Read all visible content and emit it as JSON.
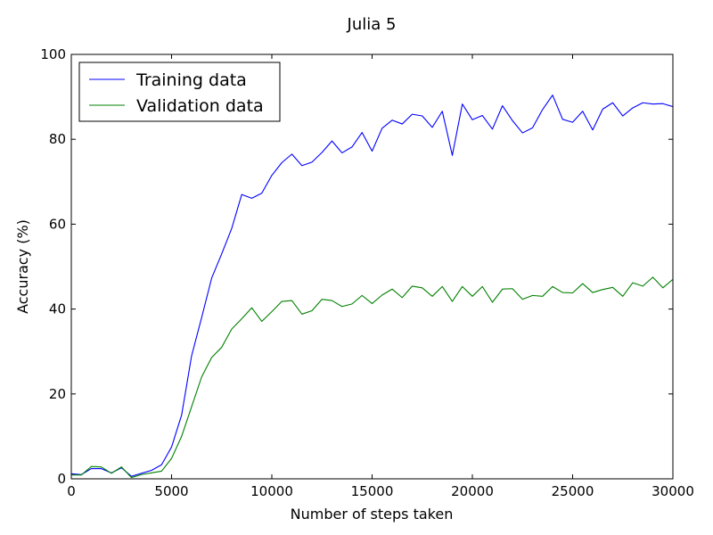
{
  "chart_data": {
    "type": "line",
    "title": "Julia 5",
    "xlabel": "Number of steps taken",
    "ylabel": "Accuracy (%)",
    "xlim": [
      0,
      30000
    ],
    "ylim": [
      0,
      100
    ],
    "xticks": [
      0,
      5000,
      10000,
      15000,
      20000,
      25000,
      30000
    ],
    "yticks": [
      0,
      20,
      40,
      60,
      80,
      100
    ],
    "grid": false,
    "legend_position": "top-left",
    "x": [
      0,
      500,
      1000,
      1500,
      2000,
      2500,
      3000,
      3500,
      4000,
      4500,
      5000,
      5500,
      6000,
      6500,
      7000,
      7500,
      8000,
      8500,
      9000,
      9500,
      10000,
      10500,
      11000,
      11500,
      12000,
      12500,
      13000,
      13500,
      14000,
      14500,
      15000,
      15500,
      16000,
      16500,
      17000,
      17500,
      18000,
      18500,
      19000,
      19500,
      20000,
      20500,
      21000,
      21500,
      22000,
      22500,
      23000,
      23500,
      24000,
      24500,
      25000,
      25500,
      26000,
      26500,
      27000,
      27500,
      28000,
      28500,
      29000,
      29500,
      30000
    ],
    "series": [
      {
        "name": "Training data",
        "color": "#0000ff",
        "values": [
          1.2,
          1.0,
          2.4,
          2.4,
          1.4,
          2.6,
          0.6,
          1.3,
          2.0,
          3.3,
          7.5,
          15,
          29,
          38,
          47.3,
          53,
          59,
          67,
          66.1,
          67.3,
          71.5,
          74.5,
          76.5,
          73.8,
          74.6,
          76.9,
          79.6,
          76.8,
          78.2,
          81.6,
          77.2,
          82.6,
          84.5,
          83.6,
          85.9,
          85.5,
          82.8,
          86.6,
          76.2,
          88.3,
          84.6,
          85.6,
          82.4,
          87.9,
          84.4,
          81.5,
          82.7,
          87.0,
          90.4,
          84.7,
          84.0,
          86.6,
          82.2,
          87.1,
          88.6,
          85.5,
          87.4,
          88.6,
          88.3,
          88.4,
          87.7
        ]
      },
      {
        "name": "Validation data",
        "color": "#008000",
        "values": [
          0.9,
          0.9,
          2.9,
          2.8,
          1.3,
          2.8,
          0.3,
          1.0,
          1.4,
          1.8,
          4.8,
          10,
          17,
          24,
          28.6,
          31,
          35.3,
          37.7,
          40.3,
          37.1,
          39.4,
          41.8,
          42.0,
          38.8,
          39.6,
          42.3,
          42.0,
          40.6,
          41.2,
          43.2,
          41.3,
          43.3,
          44.7,
          42.7,
          45.4,
          45.0,
          43.0,
          45.3,
          41.8,
          45.3,
          43.0,
          45.3,
          41.6,
          44.7,
          44.8,
          42.3,
          43.2,
          43.0,
          45.3,
          43.9,
          43.8,
          46.0,
          43.9,
          44.6,
          45.1,
          43.0,
          46.2,
          45.4,
          47.5,
          45.0,
          47.0
        ]
      }
    ]
  }
}
